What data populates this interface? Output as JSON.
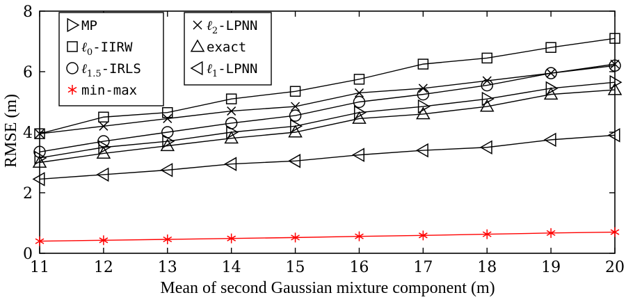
{
  "chart_data": {
    "type": "line",
    "xlabel": "Mean of second Gaussian mixture component (m)",
    "ylabel": "RMSE (m)",
    "xlim": [
      11,
      20
    ],
    "ylim": [
      0,
      8
    ],
    "xticks": [
      11,
      12,
      13,
      14,
      15,
      16,
      17,
      18,
      19,
      20
    ],
    "yticks": [
      0,
      2,
      4,
      6,
      8
    ],
    "grid": false,
    "legend_placement": "top-left (two boxes)",
    "x": [
      11,
      12,
      13,
      14,
      15,
      16,
      17,
      18,
      19,
      20
    ],
    "series": [
      {
        "name": "MP",
        "marker": "triangle-right",
        "color": "#000000",
        "legend_box": 0,
        "values": [
          3.15,
          3.5,
          3.7,
          4.0,
          4.2,
          4.65,
          4.85,
          5.1,
          5.45,
          5.65
        ]
      },
      {
        "name": "ℓ0-IIRW",
        "marker": "square",
        "color": "#000000",
        "legend_box": 0,
        "values": [
          3.95,
          4.5,
          4.65,
          5.1,
          5.35,
          5.75,
          6.25,
          6.45,
          6.8,
          7.1
        ]
      },
      {
        "name": "ℓ1.5-IRLS",
        "marker": "circle",
        "color": "#000000",
        "legend_box": 0,
        "values": [
          3.35,
          3.7,
          4.0,
          4.3,
          4.55,
          5.0,
          5.25,
          5.55,
          5.95,
          6.2
        ]
      },
      {
        "name": "min-max",
        "marker": "asterisk",
        "color": "#ff0000",
        "legend_box": 0,
        "values": [
          0.4,
          0.43,
          0.46,
          0.49,
          0.52,
          0.56,
          0.59,
          0.63,
          0.67,
          0.7
        ]
      },
      {
        "name": "ℓ2-LPNN",
        "marker": "x",
        "color": "#000000",
        "legend_box": 1,
        "values": [
          3.95,
          4.2,
          4.45,
          4.7,
          4.85,
          5.3,
          5.45,
          5.7,
          5.95,
          6.25
        ]
      },
      {
        "name": "exact",
        "marker": "triangle-up",
        "color": "#000000",
        "legend_box": 1,
        "values": [
          3.0,
          3.3,
          3.55,
          3.8,
          4.0,
          4.45,
          4.6,
          4.85,
          5.25,
          5.4
        ]
      },
      {
        "name": "ℓ1-LPNN",
        "marker": "triangle-left",
        "color": "#000000",
        "legend_box": 1,
        "values": [
          2.45,
          2.6,
          2.75,
          2.95,
          3.05,
          3.25,
          3.4,
          3.5,
          3.75,
          3.9
        ]
      }
    ],
    "legend_labels": [
      {
        "main": "MP"
      },
      {
        "main": "ℓ",
        "sub": "0",
        "rest": "-IIRW"
      },
      {
        "main": "ℓ",
        "sub": "1.5",
        "rest": "-IRLS"
      },
      {
        "main": "min-max"
      },
      {
        "main": "ℓ",
        "sub": "2",
        "rest": "-LPNN"
      },
      {
        "main": "exact"
      },
      {
        "main": "ℓ",
        "sub": "1",
        "rest": "-LPNN"
      }
    ]
  }
}
